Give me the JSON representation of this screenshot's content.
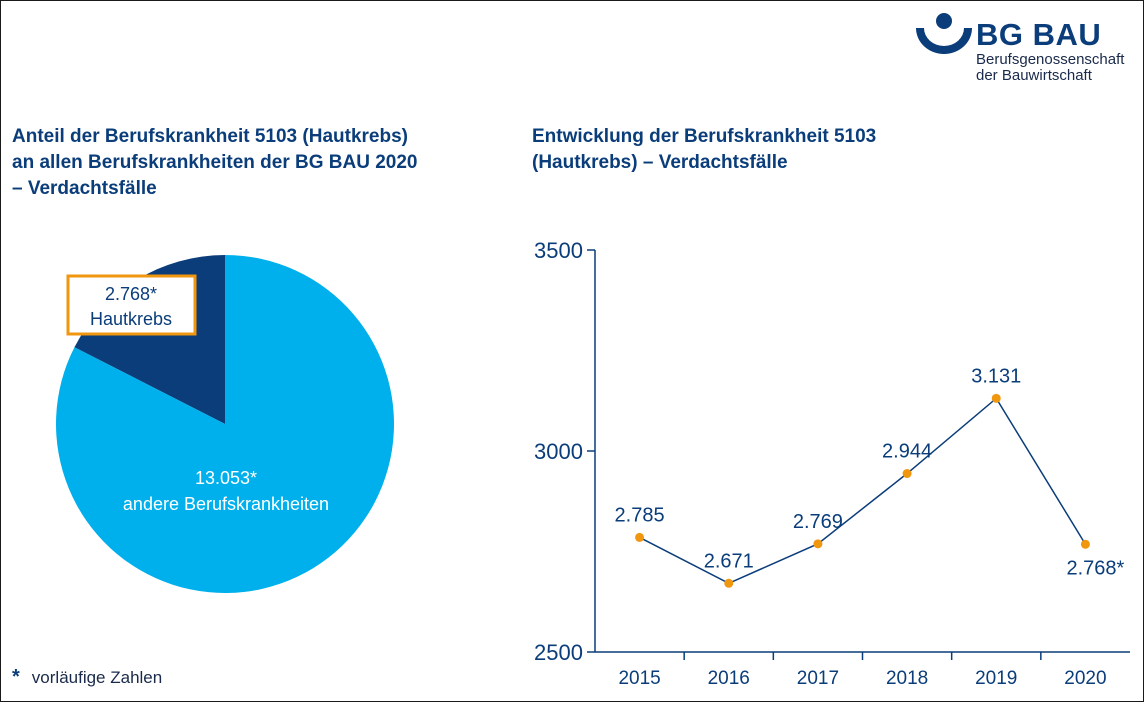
{
  "logo": {
    "name": "BG BAU",
    "subtitle_line1": "Berufsgenossenschaft",
    "subtitle_line2": "der Bauwirtschaft",
    "colors": {
      "primary": "#0a3d7a"
    }
  },
  "footnote": {
    "symbol": "*",
    "text": "vorläufige Zahlen"
  },
  "chart_data": [
    {
      "type": "pie",
      "title": "Anteil der Berufskrankheit 5103 (Hautkrebs)\nan allen Berufskrankheiten der BG BAU 2020\n– Verdachtsfälle",
      "slices": [
        {
          "label_value": "2.768*",
          "label": "Hautkrebs",
          "value": 2768,
          "color": "#0a3d7a"
        },
        {
          "label_value": "13.053*",
          "label": "andere Berufskrankheiten",
          "value": 13053,
          "color": "#00b0ec"
        }
      ],
      "highlight_color": "#f0960f"
    },
    {
      "type": "line",
      "title": "Entwicklung der Berufskrankheit 5103\n(Hautkrebs) – Verdachtsfälle",
      "x": [
        "2015",
        "2016",
        "2017",
        "2018",
        "2019",
        "2020"
      ],
      "series": [
        {
          "values": [
            2785,
            2671,
            2769,
            2944,
            3131,
            2768
          ],
          "labels": [
            "2.785",
            "2.671",
            "2.769",
            "2.944",
            "3.131",
            "2.768*"
          ],
          "line_color": "#0a3d7a",
          "marker_color": "#f0960f"
        }
      ],
      "ylim": [
        2500,
        3500
      ],
      "yticks": [
        2500,
        3000,
        3500
      ],
      "ytick_labels": [
        "2500",
        "3000",
        "3500"
      ],
      "grid": false
    }
  ]
}
